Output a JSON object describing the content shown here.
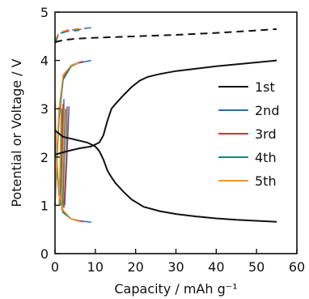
{
  "chart_data": {
    "type": "line",
    "xlabel": "Capacity / mAh g⁻¹",
    "ylabel": "Potential or Voltage / V",
    "xlim": [
      0,
      60
    ],
    "ylim": [
      0,
      5
    ],
    "xticks": [
      0,
      10,
      20,
      30,
      40,
      50,
      60
    ],
    "yticks": [
      0,
      1,
      2,
      3,
      4,
      5
    ],
    "grid": false,
    "legend_position": "right",
    "series": [
      {
        "name": "1st",
        "color": "#111111",
        "segments": [
          {
            "style": "solid",
            "points": [
              [
                0,
                2.55
              ],
              [
                2,
                2.42
              ],
              [
                5,
                2.36
              ],
              [
                8,
                2.3
              ],
              [
                10,
                2.22
              ],
              [
                11,
                2.12
              ],
              [
                12,
                1.95
              ],
              [
                13,
                1.72
              ],
              [
                14,
                1.58
              ],
              [
                15,
                1.46
              ],
              [
                17,
                1.28
              ],
              [
                19,
                1.12
              ],
              [
                22,
                0.97
              ],
              [
                26,
                0.88
              ],
              [
                30,
                0.82
              ],
              [
                35,
                0.77
              ],
              [
                40,
                0.73
              ],
              [
                45,
                0.7
              ],
              [
                50,
                0.68
              ],
              [
                55,
                0.66
              ]
            ]
          },
          {
            "style": "solid",
            "points": [
              [
                0,
                2.05
              ],
              [
                3,
                2.12
              ],
              [
                6,
                2.18
              ],
              [
                9,
                2.22
              ],
              [
                11,
                2.3
              ],
              [
                12,
                2.45
              ],
              [
                13,
                2.75
              ],
              [
                14,
                3.0
              ],
              [
                15,
                3.1
              ],
              [
                17,
                3.28
              ],
              [
                19,
                3.45
              ],
              [
                21,
                3.58
              ],
              [
                23,
                3.66
              ],
              [
                26,
                3.72
              ],
              [
                30,
                3.78
              ],
              [
                35,
                3.83
              ],
              [
                40,
                3.88
              ],
              [
                45,
                3.92
              ],
              [
                50,
                3.96
              ],
              [
                55,
                4.0
              ]
            ]
          },
          {
            "style": "dashed",
            "points": [
              [
                0,
                4.38
              ],
              [
                2,
                4.42
              ],
              [
                5,
                4.45
              ],
              [
                10,
                4.47
              ],
              [
                20,
                4.5
              ],
              [
                30,
                4.53
              ],
              [
                40,
                4.57
              ],
              [
                50,
                4.62
              ],
              [
                55,
                4.65
              ]
            ]
          }
        ]
      },
      {
        "name": "2nd",
        "color": "#2a6db5",
        "segments": [
          {
            "style": "solid",
            "points": [
              [
                0,
                3.0
              ],
              [
                0.3,
                2.0
              ],
              [
                1,
                1.2
              ],
              [
                2,
                0.85
              ],
              [
                4,
                0.72
              ],
              [
                6,
                0.68
              ],
              [
                9,
                0.65
              ]
            ]
          },
          {
            "style": "solid",
            "points": [
              [
                0,
                1.0
              ],
              [
                0.5,
                2.0
              ],
              [
                1,
                2.8
              ],
              [
                2,
                3.6
              ],
              [
                4,
                3.88
              ],
              [
                6,
                3.95
              ],
              [
                9,
                4.0
              ]
            ]
          },
          {
            "style": "dashed",
            "points": [
              [
                0,
                4.35
              ],
              [
                1,
                4.55
              ],
              [
                3,
                4.62
              ],
              [
                6,
                4.65
              ],
              [
                9,
                4.68
              ]
            ]
          },
          {
            "style": "solid",
            "points": [
              [
                1.8,
                1.05
              ],
              [
                2.0,
                2.0
              ],
              [
                2.2,
                3.2
              ]
            ]
          },
          {
            "style": "solid",
            "points": [
              [
                2.4,
                1.0
              ],
              [
                3.0,
                2.1
              ],
              [
                3.5,
                3.05
              ]
            ]
          }
        ]
      },
      {
        "name": "3rd",
        "color": "#d6303a",
        "segments": [
          {
            "style": "solid",
            "points": [
              [
                0,
                3.1
              ],
              [
                0.3,
                2.1
              ],
              [
                1,
                1.25
              ],
              [
                2,
                0.88
              ],
              [
                4,
                0.72
              ],
              [
                6,
                0.68
              ],
              [
                7,
                0.66
              ]
            ]
          },
          {
            "style": "solid",
            "points": [
              [
                0,
                1.05
              ],
              [
                0.5,
                2.1
              ],
              [
                1,
                2.9
              ],
              [
                2,
                3.65
              ],
              [
                4,
                3.9
              ],
              [
                6,
                3.96
              ],
              [
                7,
                3.98
              ]
            ]
          },
          {
            "style": "dashed",
            "points": [
              [
                0,
                4.4
              ],
              [
                1,
                4.56
              ],
              [
                3,
                4.62
              ],
              [
                6,
                4.64
              ],
              [
                7,
                4.65
              ]
            ]
          },
          {
            "style": "solid",
            "points": [
              [
                1.5,
                1.0
              ],
              [
                1.8,
                2.0
              ],
              [
                2.0,
                3.1
              ]
            ]
          },
          {
            "style": "solid",
            "points": [
              [
                2.2,
                0.95
              ],
              [
                2.8,
                2.0
              ],
              [
                3.0,
                3.05
              ]
            ]
          }
        ]
      },
      {
        "name": "4th",
        "color": "#138a7a",
        "segments": [
          {
            "style": "solid",
            "points": [
              [
                0,
                3.0
              ],
              [
                0.3,
                2.0
              ],
              [
                1,
                1.2
              ],
              [
                2,
                0.85
              ],
              [
                4,
                0.72
              ],
              [
                6,
                0.67
              ]
            ]
          },
          {
            "style": "solid",
            "points": [
              [
                0,
                1.0
              ],
              [
                0.5,
                2.0
              ],
              [
                1,
                2.85
              ],
              [
                2,
                3.6
              ],
              [
                4,
                3.88
              ],
              [
                6,
                3.96
              ]
            ]
          },
          {
            "style": "dashed",
            "points": [
              [
                0,
                4.38
              ],
              [
                1,
                4.55
              ],
              [
                3,
                4.6
              ],
              [
                6,
                4.62
              ]
            ]
          },
          {
            "style": "solid",
            "points": [
              [
                1.2,
                1.0
              ],
              [
                1.5,
                2.0
              ],
              [
                1.7,
                3.0
              ]
            ]
          },
          {
            "style": "solid",
            "points": [
              [
                1.9,
                0.95
              ],
              [
                2.3,
                2.0
              ],
              [
                2.6,
                3.0
              ]
            ]
          }
        ]
      },
      {
        "name": "5th",
        "color": "#f0962a",
        "segments": [
          {
            "style": "solid",
            "points": [
              [
                0,
                3.2
              ],
              [
                0.3,
                2.2
              ],
              [
                1,
                1.3
              ],
              [
                2,
                0.9
              ],
              [
                4,
                0.72
              ],
              [
                6,
                0.67
              ]
            ]
          },
          {
            "style": "solid",
            "points": [
              [
                0,
                1.1
              ],
              [
                0.5,
                2.2
              ],
              [
                1,
                3.0
              ],
              [
                2,
                3.7
              ],
              [
                4,
                3.9
              ],
              [
                6,
                3.95
              ]
            ]
          },
          {
            "style": "dashed",
            "points": [
              [
                0,
                4.42
              ],
              [
                1,
                4.58
              ],
              [
                3,
                4.63
              ],
              [
                6,
                4.66
              ]
            ]
          },
          {
            "style": "solid",
            "points": [
              [
                1.0,
                1.0
              ],
              [
                1.3,
                2.0
              ],
              [
                1.5,
                3.1
              ]
            ]
          },
          {
            "style": "solid",
            "points": [
              [
                1.6,
                0.9
              ],
              [
                2.0,
                2.0
              ],
              [
                2.3,
                3.0
              ]
            ]
          }
        ]
      }
    ]
  }
}
